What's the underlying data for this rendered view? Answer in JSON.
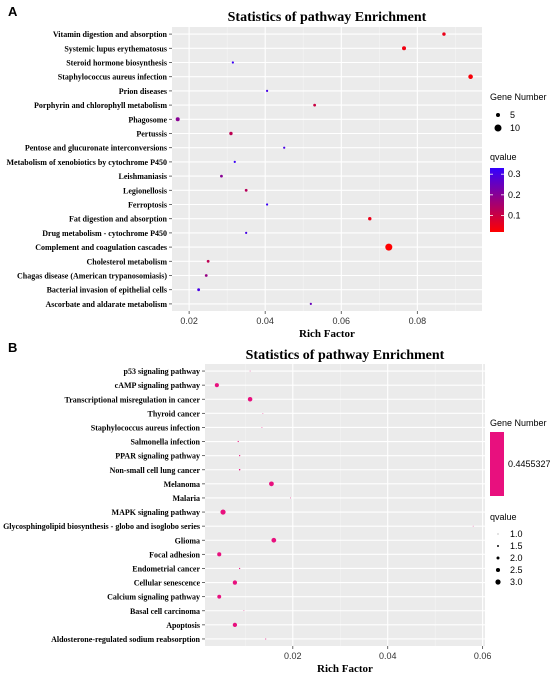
{
  "chart_data": [
    {
      "panel_label": "A",
      "type": "scatter",
      "title": "Statistics of pathway Enrichment",
      "xlabel": "Rich Factor",
      "ylabel": "",
      "xlim": [
        0.0155,
        0.097
      ],
      "xticks": [
        {
          "value": 0.02,
          "label": "0.02"
        },
        {
          "value": 0.04,
          "label": "0.04"
        },
        {
          "value": 0.06,
          "label": "0.06"
        },
        {
          "value": 0.08,
          "label": "0.08"
        }
      ],
      "grid": true,
      "legend_placement": "right",
      "size_legend": {
        "title": "Gene Number",
        "items": [
          {
            "value": 5,
            "label": "5"
          },
          {
            "value": 10,
            "label": "10"
          }
        ]
      },
      "color_legend": {
        "title": "qvalue",
        "range": [
          0.02,
          0.33
        ],
        "ticks": [
          {
            "value": 0.3,
            "label": "0.3"
          },
          {
            "value": 0.2,
            "label": "0.2"
          },
          {
            "value": 0.1,
            "label": "0.1"
          }
        ],
        "low_color": "#ff0000",
        "high_color": "#3300ff"
      },
      "points": [
        {
          "pathway": "Vitamin digestion and absorption",
          "rich_factor": 0.087,
          "gene_number": 4,
          "qvalue": 0.05
        },
        {
          "pathway": "Systemic lupus erythematosus",
          "rich_factor": 0.0765,
          "gene_number": 5,
          "qvalue": 0.04
        },
        {
          "pathway": "Steroid hormone biosynthesis",
          "rich_factor": 0.0315,
          "gene_number": 2,
          "qvalue": 0.32
        },
        {
          "pathway": "Staphylococcus aureus infection",
          "rich_factor": 0.094,
          "gene_number": 6,
          "qvalue": 0.03
        },
        {
          "pathway": "Prion diseases",
          "rich_factor": 0.0405,
          "gene_number": 2,
          "qvalue": 0.3
        },
        {
          "pathway": "Porphyrin and chlorophyll metabolism",
          "rich_factor": 0.053,
          "gene_number": 3,
          "qvalue": 0.1
        },
        {
          "pathway": "Phagosome",
          "rich_factor": 0.017,
          "gene_number": 5,
          "qvalue": 0.2
        },
        {
          "pathway": "Pertussis",
          "rich_factor": 0.031,
          "gene_number": 4,
          "qvalue": 0.12
        },
        {
          "pathway": "Pentose and glucuronate interconversions",
          "rich_factor": 0.045,
          "gene_number": 2,
          "qvalue": 0.3
        },
        {
          "pathway": "Metabolism of xenobiotics by cytochrome P450",
          "rich_factor": 0.032,
          "gene_number": 2,
          "qvalue": 0.32
        },
        {
          "pathway": "Leishmaniasis",
          "rich_factor": 0.0285,
          "gene_number": 3,
          "qvalue": 0.2
        },
        {
          "pathway": "Legionellosis",
          "rich_factor": 0.035,
          "gene_number": 3,
          "qvalue": 0.13
        },
        {
          "pathway": "Ferroptosis",
          "rich_factor": 0.0405,
          "gene_number": 2,
          "qvalue": 0.32
        },
        {
          "pathway": "Fat digestion and absorption",
          "rich_factor": 0.0675,
          "gene_number": 4,
          "qvalue": 0.05
        },
        {
          "pathway": "Drug metabolism - cytochrome P450",
          "rich_factor": 0.035,
          "gene_number": 2,
          "qvalue": 0.3
        },
        {
          "pathway": "Complement and coagulation cascades",
          "rich_factor": 0.0725,
          "gene_number": 10,
          "qvalue": 0.02
        },
        {
          "pathway": "Cholesterol metabolism",
          "rich_factor": 0.025,
          "gene_number": 3,
          "qvalue": 0.12
        },
        {
          "pathway": "Chagas disease (American trypanosomiasis)",
          "rich_factor": 0.0245,
          "gene_number": 3,
          "qvalue": 0.18
        },
        {
          "pathway": "Bacterial invasion of epithelial cells",
          "rich_factor": 0.0225,
          "gene_number": 3,
          "qvalue": 0.3
        },
        {
          "pathway": "Ascorbate and aldarate metabolism",
          "rich_factor": 0.052,
          "gene_number": 2,
          "qvalue": 0.25
        }
      ]
    },
    {
      "panel_label": "B",
      "type": "scatter",
      "title": "Statistics of pathway Enrichment",
      "xlabel": "Rich Factor",
      "ylabel": "",
      "xlim": [
        0.0015,
        0.0605
      ],
      "xticks": [
        {
          "value": 0.02,
          "label": "0.02"
        },
        {
          "value": 0.04,
          "label": "0.04"
        },
        {
          "value": 0.06,
          "label": "0.06"
        }
      ],
      "grid": true,
      "legend_placement": "right",
      "color_legend": {
        "title": "Gene Number",
        "ticks": [
          {
            "value": 0.4455327,
            "label": "0.4455327"
          }
        ],
        "color": "#e8107e"
      },
      "size_legend": {
        "title": "qvalue",
        "items": [
          {
            "value": 1.0,
            "label": "1.0"
          },
          {
            "value": 1.5,
            "label": "1.5"
          },
          {
            "value": 2.0,
            "label": "2.0"
          },
          {
            "value": 2.5,
            "label": "2.5"
          },
          {
            "value": 3.0,
            "label": "3.0"
          }
        ]
      },
      "points": [
        {
          "pathway": "p53 signaling pathway",
          "rich_factor": 0.011,
          "qvalue": 1.0
        },
        {
          "pathway": "cAMP signaling pathway",
          "rich_factor": 0.004,
          "qvalue": 2.5
        },
        {
          "pathway": "Transcriptional misregulation in cancer",
          "rich_factor": 0.011,
          "qvalue": 2.7
        },
        {
          "pathway": "Thyroid cancer",
          "rich_factor": 0.0137,
          "qvalue": 1.0
        },
        {
          "pathway": "Staphylococcus aureus infection",
          "rich_factor": 0.0135,
          "qvalue": 1.0
        },
        {
          "pathway": "Salmonella infection",
          "rich_factor": 0.0085,
          "qvalue": 1.2
        },
        {
          "pathway": "PPAR signaling pathway",
          "rich_factor": 0.0088,
          "qvalue": 1.2
        },
        {
          "pathway": "Non-small cell lung cancer",
          "rich_factor": 0.0088,
          "qvalue": 1.3
        },
        {
          "pathway": "Melanoma",
          "rich_factor": 0.0155,
          "qvalue": 2.8
        },
        {
          "pathway": "Malaria",
          "rich_factor": 0.0195,
          "qvalue": 1.0
        },
        {
          "pathway": "MAPK signaling pathway",
          "rich_factor": 0.0053,
          "qvalue": 3.0
        },
        {
          "pathway": "Glycosphingolipid biosynthesis - globo and isoglobo series",
          "rich_factor": 0.058,
          "qvalue": 1.0
        },
        {
          "pathway": "Glioma",
          "rich_factor": 0.016,
          "qvalue": 2.8
        },
        {
          "pathway": "Focal adhesion",
          "rich_factor": 0.0045,
          "qvalue": 2.5
        },
        {
          "pathway": "Endometrial cancer",
          "rich_factor": 0.0088,
          "qvalue": 1.2
        },
        {
          "pathway": "Cellular senescence",
          "rich_factor": 0.0078,
          "qvalue": 2.6
        },
        {
          "pathway": "Calcium signaling pathway",
          "rich_factor": 0.0045,
          "qvalue": 2.4
        },
        {
          "pathway": "Basal cell carcinoma",
          "rich_factor": 0.0097,
          "qvalue": 1.0
        },
        {
          "pathway": "Apoptosis",
          "rich_factor": 0.0078,
          "qvalue": 2.6
        },
        {
          "pathway": "Aldosterone-regulated sodium reabsorption",
          "rich_factor": 0.0143,
          "qvalue": 1.1
        }
      ]
    }
  ]
}
